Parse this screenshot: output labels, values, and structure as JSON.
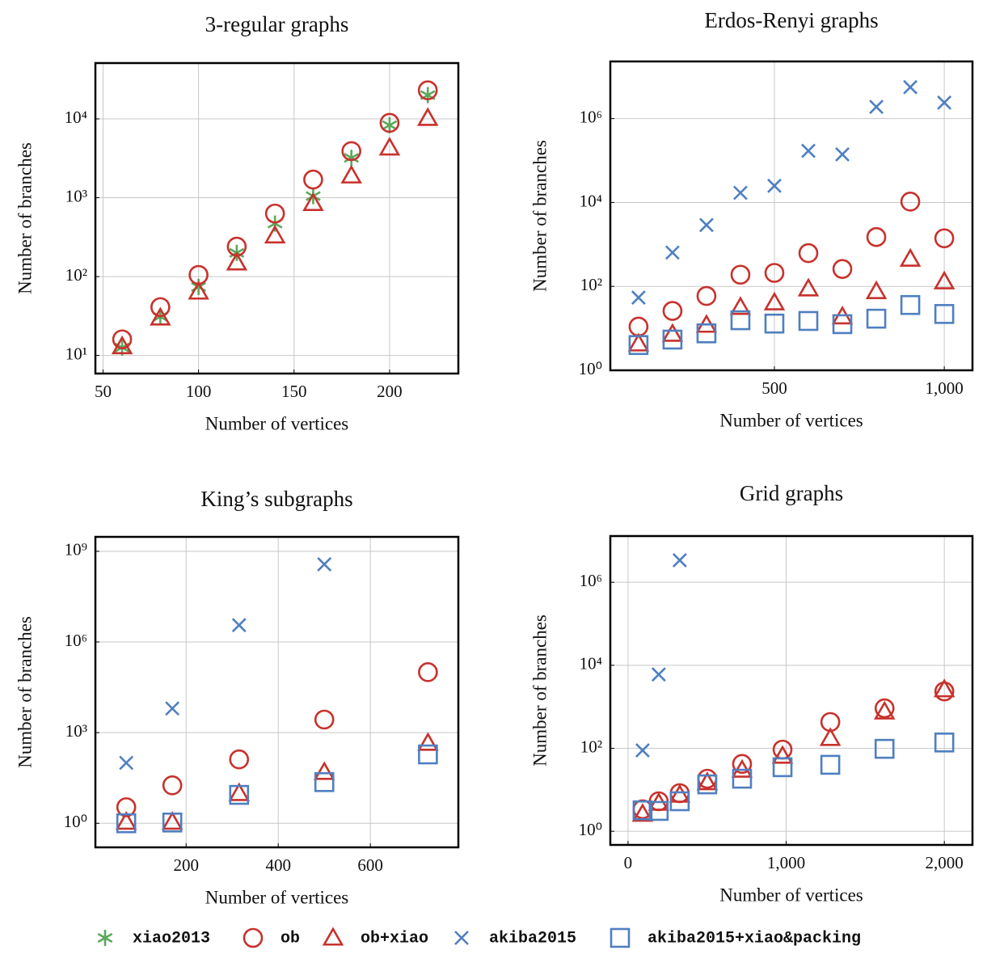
{
  "chart_data": [
    {
      "type": "scatter",
      "title": "3-regular graphs",
      "xlabel": "Number of vertices",
      "ylabel": "Number of branches",
      "x": [
        60,
        80,
        100,
        120,
        140,
        160,
        180,
        200,
        220
      ],
      "series": [
        {
          "name": "xiao2013",
          "color": "#5aa85a",
          "marker": "asterisk",
          "values": [
            12.6,
            31,
            74,
            200,
            470,
            1050,
            3200,
            8300,
            20000
          ]
        },
        {
          "name": "ob",
          "color": "#c8312c",
          "marker": "circle",
          "values": [
            16,
            41,
            105,
            240,
            630,
            1700,
            3900,
            8900,
            23000
          ]
        },
        {
          "name": "ob+xiao",
          "color": "#c8312c",
          "marker": "triangle",
          "values": [
            13,
            30,
            64,
            150,
            330,
            850,
            1900,
            4300,
            10200
          ]
        }
      ],
      "xlim": [
        46,
        236
      ],
      "xticks": [
        50,
        100,
        150,
        200
      ],
      "yscale": "log",
      "ylim": [
        5.9,
        51000
      ],
      "yticks": [
        {
          "value": 10,
          "label": "10¹"
        },
        {
          "value": 100,
          "label": "10²"
        },
        {
          "value": 1000,
          "label": "10³"
        },
        {
          "value": 10000,
          "label": "10⁴"
        }
      ],
      "grid": true
    },
    {
      "type": "scatter",
      "title": "Erdos-Renyi graphs",
      "xlabel": "Number of vertices",
      "ylabel": "Number of branches",
      "x": [
        100,
        200,
        300,
        400,
        500,
        600,
        700,
        800,
        900,
        1000
      ],
      "series": [
        {
          "name": "ob",
          "color": "#c8312c",
          "marker": "circle",
          "values": [
            11,
            26,
            59,
            190,
            210,
            620,
            260,
            1500,
            10500,
            1400
          ]
        },
        {
          "name": "ob+xiao",
          "color": "#c8312c",
          "marker": "triangle",
          "values": [
            4.3,
            7.3,
            12,
            32,
            41,
            88,
            19,
            76,
            450,
            130
          ]
        },
        {
          "name": "akiba2015",
          "color": "#4f7fc0",
          "marker": "x",
          "values": [
            54,
            640,
            2900,
            17000,
            25000,
            170000,
            140000,
            1900000,
            5600000,
            2400000
          ]
        },
        {
          "name": "akiba2015+xiao&packing",
          "color": "#4f7fc0",
          "marker": "square",
          "values": [
            4,
            5.4,
            7.6,
            15.6,
            13,
            15,
            12.6,
            17,
            36,
            22
          ]
        }
      ],
      "xlim": [
        17,
        1083
      ],
      "xticks": [
        500,
        {
          "value": 1000,
          "label": "1,000"
        }
      ],
      "yscale": "log",
      "ylim": [
        1,
        23000000
      ],
      "yticks": [
        {
          "value": 1,
          "label": "10⁰"
        },
        {
          "value": 100,
          "label": "10²"
        },
        {
          "value": 10000,
          "label": "10⁴"
        },
        {
          "value": 1000000,
          "label": "10⁶"
        }
      ],
      "grid": true
    },
    {
      "type": "scatter",
      "title": "King’s subgraphs",
      "xlabel": "Number of vertices",
      "ylabel": "Number of branches",
      "x": [
        70,
        170,
        315,
        500,
        725
      ],
      "series": [
        {
          "name": "ob",
          "color": "#c8312c",
          "marker": "circle",
          "values": [
            3.4,
            18,
            130,
            2700,
            100000
          ]
        },
        {
          "name": "ob+xiao",
          "color": "#c8312c",
          "marker": "triangle",
          "values": [
            1.1,
            1.1,
            9.8,
            49,
            450
          ]
        },
        {
          "name": "akiba2015",
          "color": "#4f7fc0",
          "marker": "x",
          "values": [
            100,
            6300,
            3600000,
            370000000,
            null
          ]
        },
        {
          "name": "akiba2015+xiao&packing",
          "color": "#4f7fc0",
          "marker": "square",
          "values": [
            1,
            1.06,
            8.7,
            23,
            190
          ]
        }
      ],
      "xlim": [
        3,
        791
      ],
      "xticks": [
        200,
        400,
        600
      ],
      "yscale": "log",
      "ylim": [
        0.16,
        3000000000
      ],
      "yticks": [
        {
          "value": 1,
          "label": "10⁰"
        },
        {
          "value": 1000,
          "label": "10³"
        },
        {
          "value": 1000000,
          "label": "10⁶"
        },
        {
          "value": 1000000000,
          "label": "10⁹"
        }
      ],
      "grid": true
    },
    {
      "type": "scatter",
      "title": "Grid graphs",
      "xlabel": "Number of vertices",
      "ylabel": "Number of branches",
      "x": [
        92,
        194,
        327,
        501,
        721,
        977,
        1279,
        1622,
        2000
      ],
      "series": [
        {
          "name": "ob",
          "color": "#c8312c",
          "marker": "circle",
          "values": [
            3.4,
            5.3,
            8.3,
            18.5,
            42,
            93,
            430,
            920,
            2350
          ]
        },
        {
          "name": "ob+xiao",
          "color": "#c8312c",
          "marker": "triangle",
          "values": [
            2.6,
            4.8,
            7.5,
            15,
            30,
            65,
            175,
            760,
            2600
          ]
        },
        {
          "name": "akiba2015",
          "color": "#4f7fc0",
          "marker": "x",
          "values": [
            89,
            6000,
            3400000,
            null,
            null,
            null,
            null,
            null,
            null
          ]
        },
        {
          "name": "akiba2015+xiao&packing",
          "color": "#4f7fc0",
          "marker": "square",
          "values": [
            3.2,
            3.1,
            5.3,
            13.5,
            18.5,
            35,
            40,
            97,
            138
          ]
        }
      ],
      "xlim": [
        -112,
        2178
      ],
      "xticks": [
        0,
        {
          "value": 1000,
          "label": "1,000"
        },
        {
          "value": 2000,
          "label": "2,000"
        }
      ],
      "yscale": "log",
      "ylim": [
        0.47,
        13000000
      ],
      "yticks": [
        {
          "value": 1,
          "label": "10⁰"
        },
        {
          "value": 100,
          "label": "10²"
        },
        {
          "value": 10000,
          "label": "10⁴"
        },
        {
          "value": 1000000,
          "label": "10⁶"
        }
      ],
      "grid": true
    }
  ],
  "legend": [
    {
      "name": "xiao2013",
      "color": "#5aa85a",
      "marker": "asterisk"
    },
    {
      "name": "ob",
      "color": "#c8312c",
      "marker": "circle"
    },
    {
      "name": "ob+xiao",
      "color": "#c8312c",
      "marker": "triangle"
    },
    {
      "name": "akiba2015",
      "color": "#4f7fc0",
      "marker": "x"
    },
    {
      "name": "akiba2015+xiao&packing",
      "color": "#4f7fc0",
      "marker": "square"
    }
  ]
}
